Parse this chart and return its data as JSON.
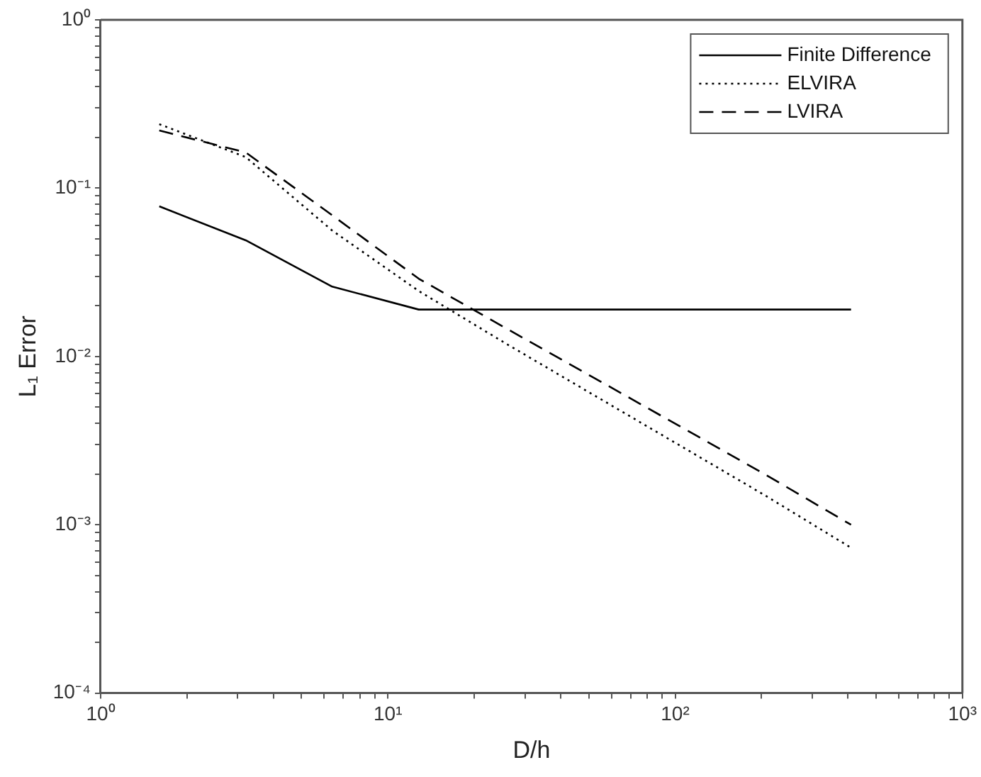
{
  "chart_data": {
    "type": "line",
    "xlabel": "D/h",
    "ylabel": "L₁ Error",
    "log": "xy",
    "grid": false,
    "legend": "top right",
    "marker": "none",
    "xlim": [
      1,
      1000
    ],
    "ylim": [
      0.0001,
      1
    ],
    "xticks": [
      {
        "value": 1,
        "label": "10⁰"
      },
      {
        "value": 2,
        "label": null
      },
      {
        "value": 3,
        "label": null
      },
      {
        "value": 4,
        "label": null
      },
      {
        "value": 5,
        "label": null
      },
      {
        "value": 6,
        "label": null
      },
      {
        "value": 7,
        "label": null
      },
      {
        "value": 8,
        "label": null
      },
      {
        "value": 9,
        "label": null
      },
      {
        "value": 10,
        "label": "10¹"
      },
      {
        "value": 20,
        "label": null
      },
      {
        "value": 30,
        "label": null
      },
      {
        "value": 40,
        "label": null
      },
      {
        "value": 50,
        "label": null
      },
      {
        "value": 60,
        "label": null
      },
      {
        "value": 70,
        "label": null
      },
      {
        "value": 80,
        "label": null
      },
      {
        "value": 90,
        "label": null
      },
      {
        "value": 100,
        "label": "10²"
      },
      {
        "value": 200,
        "label": null
      },
      {
        "value": 300,
        "label": null
      },
      {
        "value": 400,
        "label": null
      },
      {
        "value": 500,
        "label": null
      },
      {
        "value": 600,
        "label": null
      },
      {
        "value": 700,
        "label": null
      },
      {
        "value": 800,
        "label": null
      },
      {
        "value": 900,
        "label": null
      },
      {
        "value": 1000,
        "label": "10³"
      }
    ],
    "yticks": [
      {
        "value": 0.0001,
        "label": "10⁻⁴"
      },
      {
        "value": 0.0002,
        "label": null
      },
      {
        "value": 0.0003,
        "label": null
      },
      {
        "value": 0.0004,
        "label": null
      },
      {
        "value": 0.0005,
        "label": null
      },
      {
        "value": 0.0006,
        "label": null
      },
      {
        "value": 0.0007,
        "label": null
      },
      {
        "value": 0.0008,
        "label": null
      },
      {
        "value": 0.0009,
        "label": null
      },
      {
        "value": 0.001,
        "label": "10⁻³"
      },
      {
        "value": 0.002,
        "label": null
      },
      {
        "value": 0.003,
        "label": null
      },
      {
        "value": 0.004,
        "label": null
      },
      {
        "value": 0.005,
        "label": null
      },
      {
        "value": 0.006,
        "label": null
      },
      {
        "value": 0.007,
        "label": null
      },
      {
        "value": 0.008,
        "label": null
      },
      {
        "value": 0.009,
        "label": null
      },
      {
        "value": 0.01,
        "label": "10⁻²"
      },
      {
        "value": 0.02,
        "label": null
      },
      {
        "value": 0.03,
        "label": null
      },
      {
        "value": 0.04,
        "label": null
      },
      {
        "value": 0.05,
        "label": null
      },
      {
        "value": 0.06,
        "label": null
      },
      {
        "value": 0.07,
        "label": null
      },
      {
        "value": 0.08,
        "label": null
      },
      {
        "value": 0.09,
        "label": null
      },
      {
        "value": 0.1,
        "label": "10⁻¹"
      },
      {
        "value": 0.2,
        "label": null
      },
      {
        "value": 0.3,
        "label": null
      },
      {
        "value": 0.4,
        "label": null
      },
      {
        "value": 0.5,
        "label": null
      },
      {
        "value": 0.6,
        "label": null
      },
      {
        "value": 0.7,
        "label": null
      },
      {
        "value": 0.8,
        "label": null
      },
      {
        "value": 0.9,
        "label": null
      },
      {
        "value": 1,
        "label": "10⁰"
      }
    ],
    "x": [
      1.6,
      3.2,
      6.4,
      12.8,
      25.6,
      51.2,
      102.4,
      204.8,
      409.6
    ],
    "series": [
      {
        "name": "Finite Difference",
        "color": "#000000",
        "line_style": "solid",
        "values": [
          0.078,
          0.049,
          0.026,
          0.019,
          0.019,
          0.019,
          0.019,
          0.019,
          0.019
        ]
      },
      {
        "name": "ELVIRA",
        "color": "#000000",
        "line_style": "dotted",
        "values": [
          0.24,
          0.153,
          0.056,
          0.0245,
          0.012,
          0.006,
          0.003,
          0.0015,
          0.00073
        ]
      },
      {
        "name": "LVIRA",
        "color": "#000000",
        "line_style": "dashed",
        "values": [
          0.22,
          0.163,
          0.069,
          0.029,
          0.0148,
          0.0076,
          0.0039,
          0.002,
          0.001
        ]
      }
    ]
  }
}
